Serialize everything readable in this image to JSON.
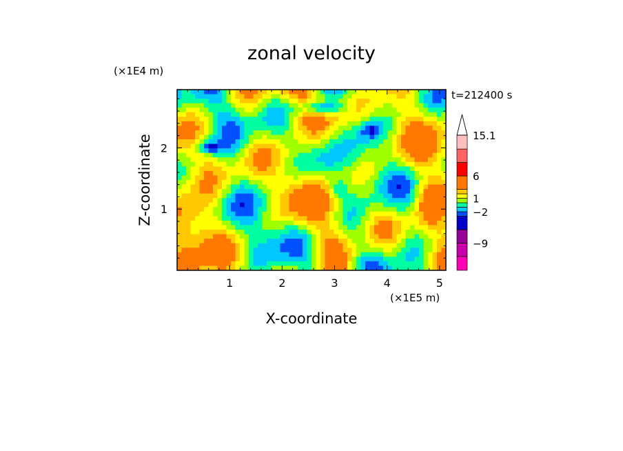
{
  "chart_data": {
    "type": "heatmap",
    "title": "zonal velocity",
    "xlabel": "X-coordinate",
    "ylabel": "Z-coordinate",
    "x_unit": "(×1E5 m)",
    "y_unit": "(×1E4 m)",
    "time_label": "t=212400 s",
    "xlim": [
      0,
      5.12
    ],
    "ylim": [
      0,
      2.95
    ],
    "x_ticks": [
      1,
      2,
      3,
      4,
      5
    ],
    "y_ticks": [
      1,
      2
    ],
    "colorbar": {
      "levels": [
        -15.1,
        -12,
        -9,
        -6,
        -3,
        -2,
        -1,
        0,
        1,
        2,
        3,
        6,
        9,
        12,
        15.1
      ],
      "colors": [
        "#ff00b4",
        "#c800aa",
        "#960096",
        "#0000c8",
        "#0050ff",
        "#00c8ff",
        "#00ffa0",
        "#a0ff00",
        "#ffff00",
        "#ffc800",
        "#ff7800",
        "#ff0000",
        "#ff6464",
        "#ffbebe"
      ],
      "extend_max": true,
      "tick_labels": [
        {
          "value": 15.1,
          "label": "15.1"
        },
        {
          "value": 6,
          "label": "6"
        },
        {
          "value": 1,
          "label": "1"
        },
        {
          "value": -2,
          "label": "−2"
        },
        {
          "value": -9,
          "label": "−9"
        }
      ]
    }
  }
}
